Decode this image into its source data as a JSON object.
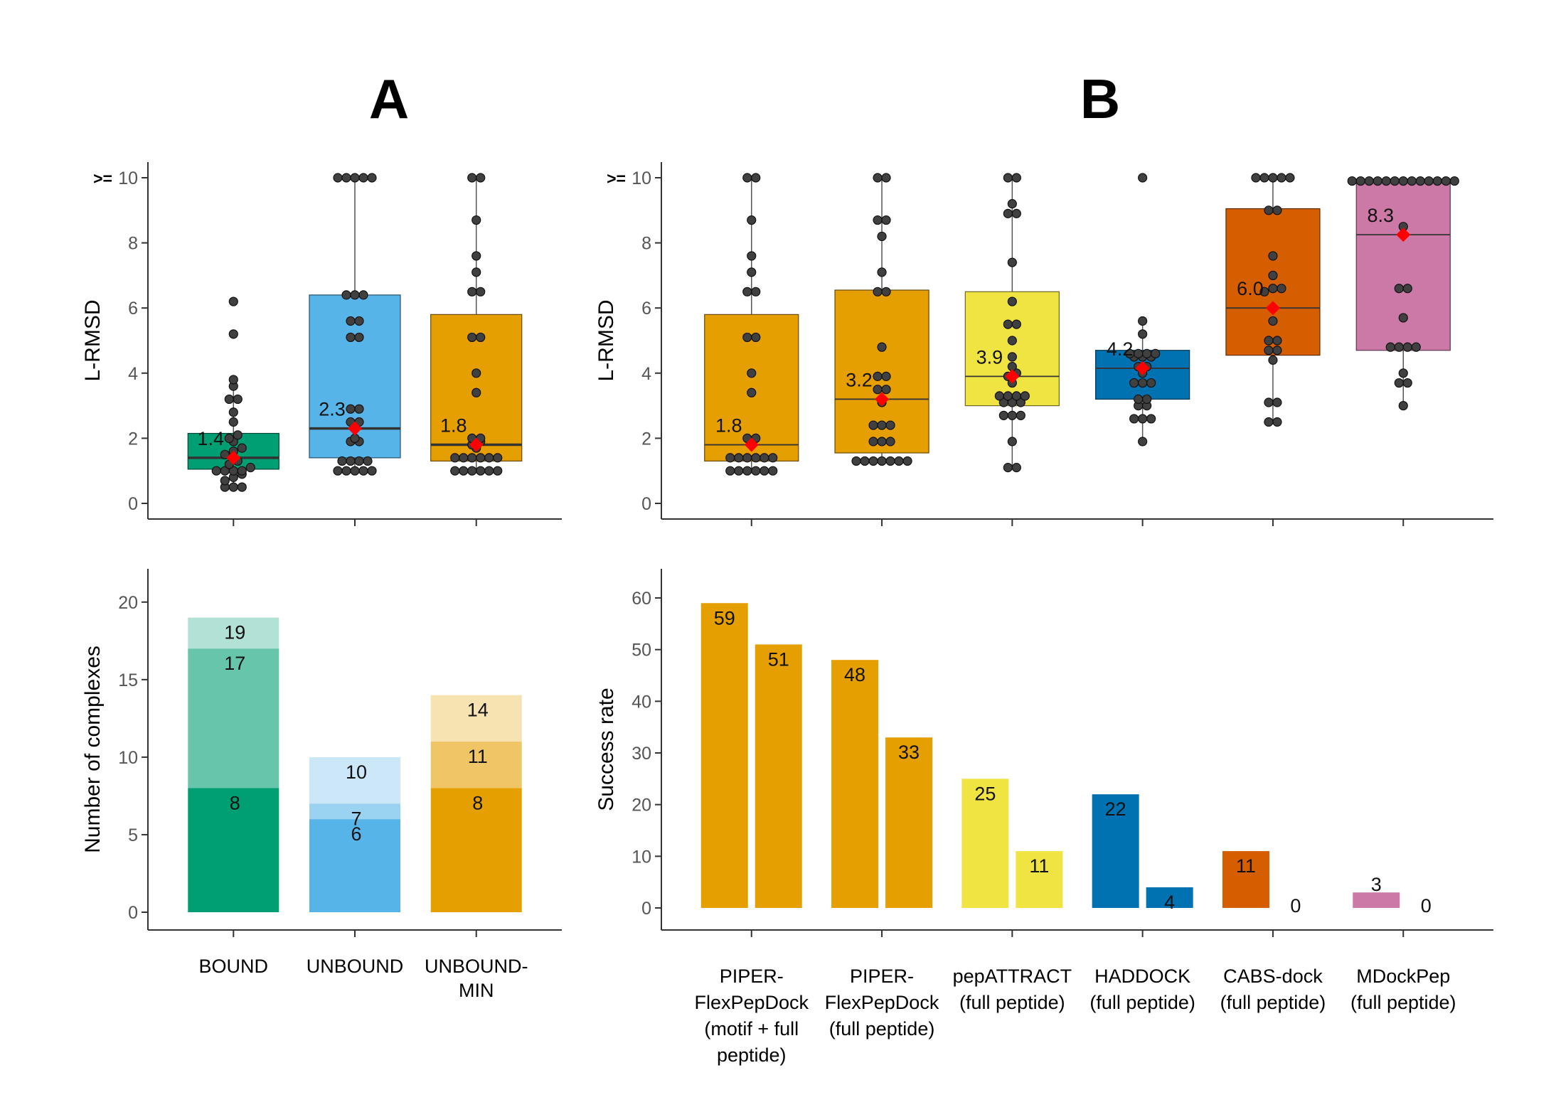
{
  "panels": {
    "a": "A",
    "b": "B"
  },
  "colors": {
    "green": "#009E73",
    "sky": "#56B4E9",
    "orange": "#E69F00",
    "yellow": "#F0E442",
    "blue": "#0072B2",
    "vermillion": "#D55E00",
    "pink": "#CC79A7",
    "mean_marker": "#FF0000",
    "point": "#404040"
  },
  "chart_data": [
    {
      "id": "A-box",
      "type": "box",
      "ylabel": "L-RMSD",
      "ylim": [
        0,
        10
      ],
      "yticks": [
        0,
        2,
        4,
        6,
        8,
        10
      ],
      "ytick_prefix": ">=",
      "grid": false,
      "categories": [
        "BOUND",
        "UNBOUND",
        "UNBOUND-MIN"
      ],
      "colors": [
        "green",
        "sky",
        "orange"
      ],
      "boxes": [
        {
          "q1": 1.05,
          "median": 1.4,
          "q3": 2.15,
          "lower": 0.5,
          "upper": 3.8,
          "mean": 1.4,
          "mean_label": "1.4",
          "points": [
            0.5,
            0.5,
            0.5,
            0.7,
            0.8,
            0.9,
            1.0,
            1.0,
            1.0,
            1.0,
            1.1,
            1.2,
            1.3,
            1.5,
            1.6,
            1.7,
            1.9,
            2.0,
            2.1,
            2.5,
            2.8,
            3.2,
            3.2,
            3.6,
            3.8,
            5.2,
            6.2
          ]
        },
        {
          "q1": 1.4,
          "median": 2.3,
          "q3": 6.4,
          "lower": 1.0,
          "upper": 10,
          "mean": 2.3,
          "mean_label": "2.3",
          "points": [
            1.0,
            1.0,
            1.0,
            1.0,
            1.0,
            1.3,
            1.3,
            1.3,
            1.3,
            1.9,
            1.9,
            2.0,
            2.5,
            2.5,
            2.9,
            2.9,
            5.1,
            5.1,
            5.6,
            5.6,
            6.4,
            6.4,
            6.4,
            10,
            10,
            10,
            10,
            10
          ]
        },
        {
          "q1": 1.3,
          "median": 1.8,
          "q3": 5.8,
          "lower": 1.0,
          "upper": 10,
          "mean": 1.8,
          "mean_label": "1.8",
          "points": [
            1.0,
            1.0,
            1.0,
            1.0,
            1.0,
            1.0,
            1.4,
            1.4,
            1.4,
            1.4,
            1.4,
            1.4,
            1.7,
            1.8,
            1.9,
            2.0,
            2.0,
            3.4,
            4.0,
            5.1,
            5.1,
            6.5,
            6.5,
            7.1,
            7.6,
            8.7,
            10,
            10
          ]
        }
      ]
    },
    {
      "id": "B-box",
      "type": "box",
      "ylabel": "L-RMSD",
      "ylim": [
        0,
        10
      ],
      "yticks": [
        0,
        2,
        4,
        6,
        8,
        10
      ],
      "ytick_prefix": ">=",
      "grid": false,
      "categories": [
        [
          "PIPER-",
          "FlexPepDock",
          "(motif + full",
          "peptide)"
        ],
        [
          "PIPER-",
          "FlexPepDock",
          "(full peptide)"
        ],
        [
          "pepATTRACT",
          "(full peptide)"
        ],
        [
          "HADDOCK",
          "(full peptide)"
        ],
        [
          "CABS-dock",
          "(full peptide)"
        ],
        [
          "MDockPep",
          "(full peptide)"
        ]
      ],
      "colors": [
        "orange",
        "orange",
        "yellow",
        "blue",
        "vermillion",
        "pink"
      ],
      "boxes": [
        {
          "q1": 1.3,
          "median": 1.8,
          "q3": 5.8,
          "lower": 1.0,
          "upper": 10,
          "mean": 1.8,
          "mean_label": "1.8",
          "points": [
            1.0,
            1.0,
            1.0,
            1.0,
            1.0,
            1.0,
            1.4,
            1.4,
            1.4,
            1.4,
            1.4,
            1.4,
            1.8,
            2.0,
            2.0,
            3.4,
            4.0,
            5.1,
            5.1,
            6.5,
            6.5,
            7.1,
            7.6,
            8.7,
            10,
            10
          ]
        },
        {
          "q1": 1.55,
          "median": 3.2,
          "q3": 6.55,
          "lower": 1.3,
          "upper": 10,
          "mean": 3.2,
          "mean_label": "3.2",
          "points": [
            1.3,
            1.3,
            1.3,
            1.3,
            1.3,
            1.3,
            1.3,
            1.9,
            1.9,
            1.9,
            2.4,
            2.4,
            2.4,
            3.1,
            3.5,
            3.5,
            3.9,
            3.9,
            4.8,
            6.5,
            6.5,
            7.1,
            8.2,
            8.7,
            8.7,
            10,
            10
          ]
        },
        {
          "q1": 3.0,
          "median": 3.9,
          "q3": 6.5,
          "lower": 1.1,
          "upper": 10,
          "mean": 3.9,
          "mean_label": "3.9",
          "points": [
            1.1,
            1.1,
            1.9,
            2.7,
            2.7,
            2.7,
            3.1,
            3.1,
            3.1,
            3.3,
            3.3,
            3.3,
            3.3,
            3.7,
            3.9,
            4.0,
            4.2,
            4.5,
            5.0,
            5.5,
            5.5,
            6.2,
            7.4,
            8.9,
            8.9,
            9.2,
            10,
            10
          ]
        },
        {
          "q1": 3.2,
          "median": 4.15,
          "q3": 4.7,
          "lower": 1.9,
          "upper": 5.6,
          "mean": 4.15,
          "mean_label": "4.2",
          "points": [
            1.9,
            2.6,
            2.6,
            2.6,
            3.0,
            3.0,
            3.2,
            3.2,
            3.7,
            3.7,
            3.7,
            4.0,
            4.2,
            4.2,
            4.5,
            4.5,
            4.5,
            4.6,
            4.6,
            4.6,
            4.6,
            5.2,
            5.6,
            10
          ]
        },
        {
          "q1": 4.55,
          "median": 6.0,
          "q3": 9.05,
          "lower": 2.5,
          "upper": 10,
          "mean": 6.0,
          "mean_label": "6.0",
          "points": [
            2.5,
            2.5,
            3.1,
            3.1,
            4.4,
            4.7,
            4.7,
            5.0,
            5.0,
            5.6,
            6.0,
            6.5,
            6.6,
            6.6,
            7.0,
            7.6,
            9.0,
            9.0,
            10,
            10,
            10,
            10,
            10
          ]
        },
        {
          "q1": 4.7,
          "median": 8.25,
          "q3": 9.95,
          "lower": 3.0,
          "upper": 10,
          "mean": 8.25,
          "mean_label": "8.3",
          "points": [
            3.0,
            3.7,
            3.7,
            4.0,
            4.8,
            4.8,
            4.8,
            4.8,
            5.7,
            6.6,
            6.6,
            8.5,
            9.9,
            9.9,
            9.9,
            9.9,
            9.9,
            9.9,
            9.9,
            9.9,
            9.9,
            9.9,
            9.9,
            9.9,
            9.9
          ]
        }
      ]
    },
    {
      "id": "A-bar",
      "type": "bar",
      "ylabel": "Number of complexes",
      "ylim": [
        0,
        21
      ],
      "yticks": [
        0,
        5,
        10,
        15,
        20
      ],
      "grid": false,
      "categories": [
        "BOUND",
        "UNBOUND",
        "UNBOUND-MIN"
      ],
      "colors": [
        "green",
        "sky",
        "orange"
      ],
      "stacks": [
        [
          {
            "value": 8,
            "alpha": 1.0
          },
          {
            "value": 17,
            "alpha": 0.6
          },
          {
            "value": 19,
            "alpha": 0.3
          }
        ],
        [
          {
            "value": 6,
            "alpha": 1.0
          },
          {
            "value": 7,
            "alpha": 0.6
          },
          {
            "value": 10,
            "alpha": 0.3
          }
        ],
        [
          {
            "value": 8,
            "alpha": 1.0
          },
          {
            "value": 11,
            "alpha": 0.6
          },
          {
            "value": 14,
            "alpha": 0.3
          }
        ]
      ]
    },
    {
      "id": "B-bar",
      "type": "bar",
      "ylabel": "Success rate",
      "ylim": [
        0,
        63
      ],
      "yticks": [
        0,
        10,
        20,
        30,
        40,
        50,
        60
      ],
      "grid": false,
      "categories": [
        [
          "PIPER-",
          "FlexPepDock",
          "(motif + full",
          "peptide)"
        ],
        [
          "PIPER-",
          "FlexPepDock",
          "(full peptide)"
        ],
        [
          "pepATTRACT",
          "(full peptide)"
        ],
        [
          "HADDOCK",
          "(full peptide)"
        ],
        [
          "CABS-dock",
          "(full peptide)"
        ],
        [
          "MDockPep",
          "(full peptide)"
        ]
      ],
      "colors": [
        "orange",
        "orange",
        "yellow",
        "blue",
        "vermillion",
        "pink"
      ],
      "pairs": [
        [
          59,
          51
        ],
        [
          48,
          33
        ],
        [
          25,
          11
        ],
        [
          22,
          4
        ],
        [
          11,
          0
        ],
        [
          3,
          0
        ]
      ]
    }
  ]
}
